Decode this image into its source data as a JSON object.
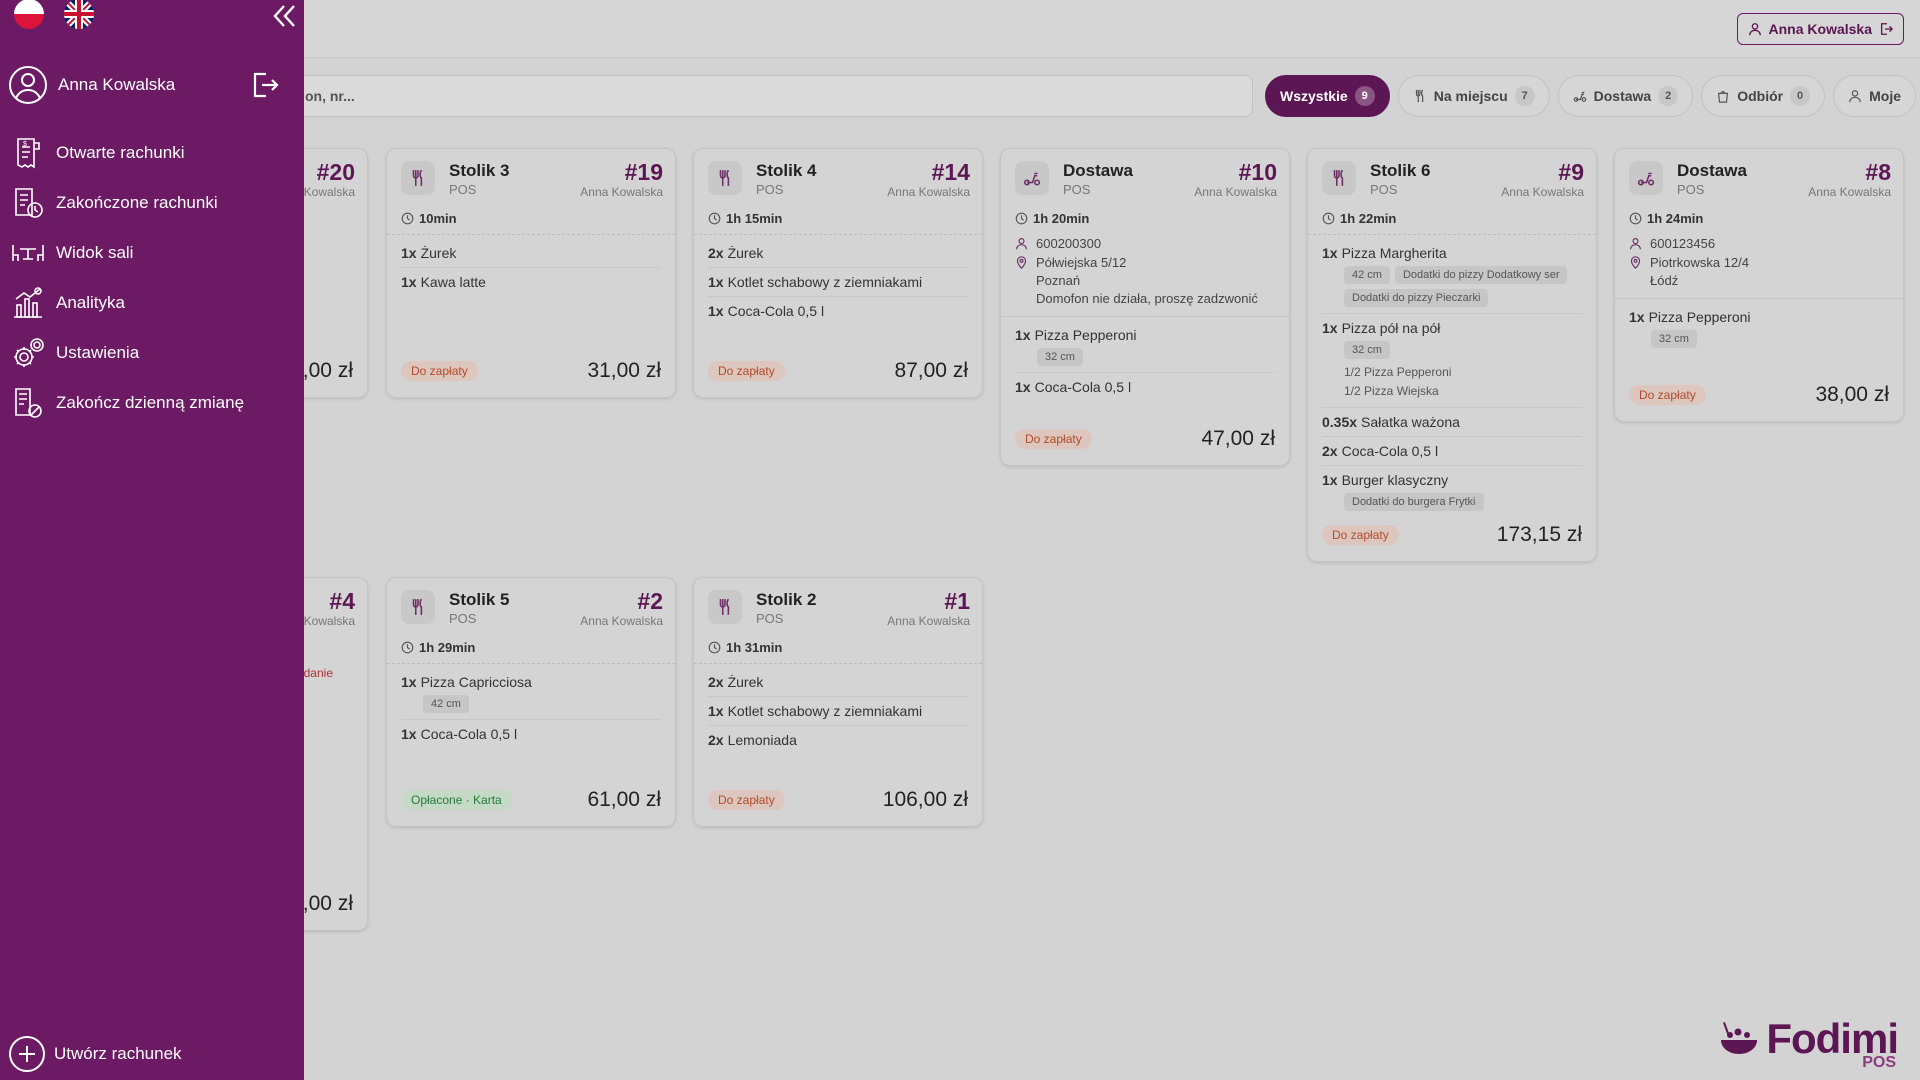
{
  "header": {
    "user_button": "Anna Kowalska"
  },
  "search": {
    "placeholder": "on, nr..."
  },
  "filters": [
    {
      "label": "Wszystkie",
      "count": "9"
    },
    {
      "label": "Na miejscu",
      "count": "7"
    },
    {
      "label": "Dostawa",
      "count": "2"
    },
    {
      "label": "Odbiór",
      "count": "0"
    },
    {
      "label": "Moje",
      "count": ""
    }
  ],
  "sidebar": {
    "user_name": "Anna Kowalska",
    "menu": [
      {
        "label": "Otwarte rachunki",
        "icon": "receipt-icon"
      },
      {
        "label": "Zakończone rachunki",
        "icon": "receipt-clock-icon"
      },
      {
        "label": "Widok sali",
        "icon": "tables-icon"
      },
      {
        "label": "Analityka",
        "icon": "analytics-icon"
      },
      {
        "label": "Ustawienia",
        "icon": "settings-icon"
      },
      {
        "label": "Zakończ dzienną zmianę",
        "icon": "end-shift-icon"
      }
    ],
    "create_label": "Utwórz rachunek"
  },
  "cards": {
    "c20": {
      "number": "#20",
      "staff": "Kowalska",
      "total": ",00 zł"
    },
    "c19": {
      "title": "Stolik 3",
      "sub": "POS",
      "number": "#19",
      "staff": "Anna Kowalska",
      "time": "10min",
      "items": [
        {
          "qty": "1x",
          "name": "Żurek"
        },
        {
          "qty": "1x",
          "name": "Kawa latte"
        }
      ],
      "status": "Do zapłaty",
      "total": "31,00 zł"
    },
    "c14": {
      "title": "Stolik 4",
      "sub": "POS",
      "number": "#14",
      "staff": "Anna Kowalska",
      "time": "1h 15min",
      "items": [
        {
          "qty": "2x",
          "name": "Żurek"
        },
        {
          "qty": "1x",
          "name": "Kotlet schabowy z ziemniakami"
        },
        {
          "qty": "1x",
          "name": "Coca-Cola 0,5 l"
        }
      ],
      "status": "Do zapłaty",
      "total": "87,00 zł"
    },
    "c10": {
      "title": "Dostawa",
      "sub": "POS",
      "number": "#10",
      "staff": "Anna Kowalska",
      "time": "1h 20min",
      "phone": "600200300",
      "address1": "Półwiejska 5/12",
      "address2": "Poznań",
      "note": "Domofon nie działa, proszę zadzwonić",
      "items": [
        {
          "qty": "1x",
          "name": "Pizza Pepperoni",
          "chip": "32 cm"
        },
        {
          "qty": "1x",
          "name": "Coca-Cola 0,5 l"
        }
      ],
      "status": "Do zapłaty",
      "total": "47,00 zł"
    },
    "c9": {
      "title": "Stolik 6",
      "sub": "POS",
      "number": "#9",
      "staff": "Anna Kowalska",
      "time": "1h 22min",
      "items": [
        {
          "qty": "1x",
          "name": "Pizza Margherita",
          "chips": [
            "42 cm",
            "Dodatki do pizzy Dodatkowy ser",
            "Dodatki do pizzy Pieczarki"
          ]
        },
        {
          "qty": "1x",
          "name": "Pizza pół na pół",
          "chip": "32 cm",
          "sub1": "1/2 Pizza Pepperoni",
          "sub2": "1/2 Pizza Wiejska"
        },
        {
          "qty": "0.35x",
          "name": "Sałatka ważona"
        },
        {
          "qty": "2x",
          "name": "Coca-Cola 0,5 l"
        },
        {
          "qty": "1x",
          "name": "Burger klasyczny",
          "chip": "Dodatki do burgera Frytki"
        }
      ],
      "status": "Do zapłaty",
      "total": "173,15 zł"
    },
    "c8": {
      "title": "Dostawa",
      "sub": "POS",
      "number": "#8",
      "staff": "Anna Kowalska",
      "time": "1h 24min",
      "phone": "600123456",
      "address1": "Piotrkowska 12/4",
      "address2": "Łódź",
      "items": [
        {
          "qty": "1x",
          "name": "Pizza Pepperoni",
          "chip": "32 cm"
        }
      ],
      "status": "Do zapłaty",
      "total": "38,00 zł"
    },
    "c4": {
      "number": "#4",
      "staff": "Kowalska",
      "note": "danie",
      "total": ",00 zł"
    },
    "c2": {
      "title": "Stolik 5",
      "sub": "POS",
      "number": "#2",
      "staff": "Anna Kowalska",
      "time": "1h 29min",
      "items": [
        {
          "qty": "1x",
          "name": "Pizza Capricciosa",
          "chip": "42 cm"
        },
        {
          "qty": "1x",
          "name": "Coca-Cola 0,5 l"
        }
      ],
      "status": "Opłacone · Karta",
      "total": "61,00 zł"
    },
    "c1": {
      "title": "Stolik 2",
      "sub": "POS",
      "number": "#1",
      "staff": "Anna Kowalska",
      "time": "1h 31min",
      "items": [
        {
          "qty": "2x",
          "name": "Żurek"
        },
        {
          "qty": "1x",
          "name": "Kotlet schabowy z ziemniakami"
        },
        {
          "qty": "2x",
          "name": "Lemoniada"
        }
      ],
      "status": "Do zapłaty",
      "total": "106,00 zł"
    }
  },
  "logo": {
    "name": "Fodimi",
    "sub": "POS"
  },
  "colors": {
    "brand": "#6b1a63",
    "unpaid": "#b44a2a",
    "paid": "#277a3a"
  }
}
